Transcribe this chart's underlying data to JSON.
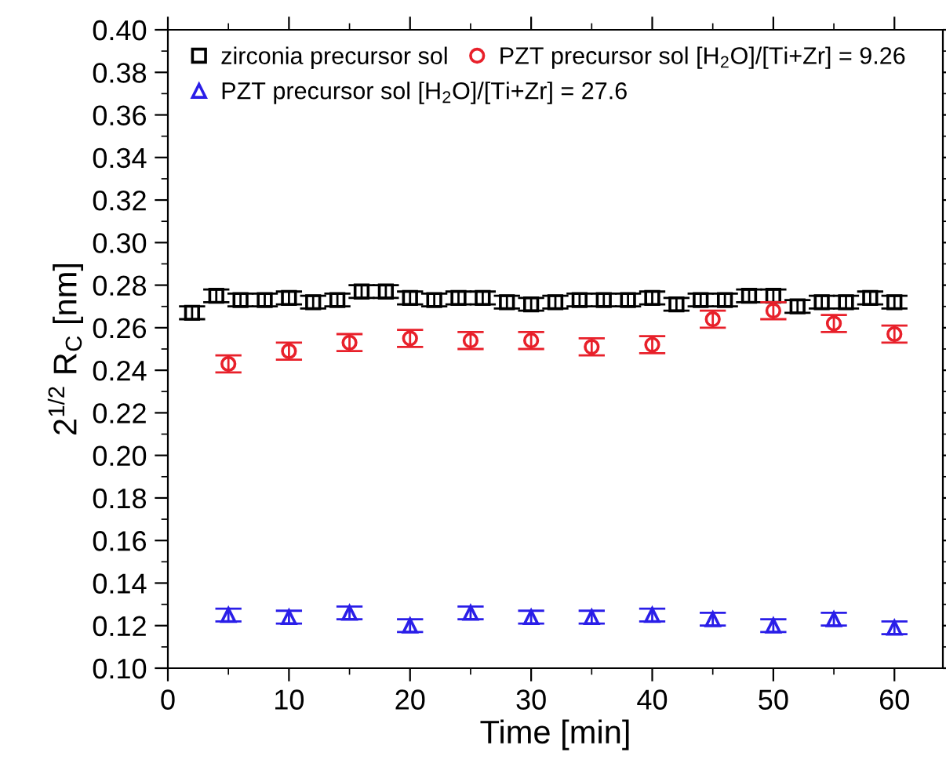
{
  "chart_data": {
    "type": "scatter",
    "xlabel": "Time [min]",
    "ylabel": "2$^{1/2}$ R$_{C}$ [nm]",
    "xlim": [
      0,
      64
    ],
    "xticks": [
      0,
      10,
      20,
      30,
      40,
      50,
      60
    ],
    "ylim": [
      0.1,
      0.4
    ],
    "yticks": [
      {
        "value": 0.1,
        "label": "0.10"
      },
      {
        "value": 0.12,
        "label": "0.12"
      },
      {
        "value": 0.14,
        "label": "0.14"
      },
      {
        "value": 0.16,
        "label": "0.16"
      },
      {
        "value": 0.18,
        "label": "0.18"
      },
      {
        "value": 0.2,
        "label": "0.20"
      },
      {
        "value": 0.22,
        "label": "0.22"
      },
      {
        "value": 0.24,
        "label": "0.24"
      },
      {
        "value": 0.26,
        "label": "0.26"
      },
      {
        "value": 0.28,
        "label": "0.28"
      },
      {
        "value": 0.3,
        "label": "0.30"
      },
      {
        "value": 0.32,
        "label": "0.32"
      },
      {
        "value": 0.34,
        "label": "0.34"
      },
      {
        "value": 0.36,
        "label": "0.36"
      },
      {
        "value": 0.38,
        "label": "0.38"
      },
      {
        "value": 0.4,
        "label": "0.40"
      }
    ],
    "grid": false,
    "legend": "top left",
    "series": [
      {
        "name": "zirconia precursor sol",
        "color": "#000000",
        "marker": "square",
        "x": [
          2,
          4,
          6,
          8,
          10,
          12,
          14,
          16,
          18,
          20,
          22,
          24,
          26,
          28,
          30,
          32,
          34,
          36,
          38,
          40,
          42,
          44,
          46,
          48,
          50,
          52,
          54,
          56,
          58,
          60
        ],
        "values": [
          0.267,
          0.275,
          0.273,
          0.273,
          0.274,
          0.272,
          0.273,
          0.277,
          0.277,
          0.274,
          0.273,
          0.274,
          0.274,
          0.272,
          0.271,
          0.272,
          0.273,
          0.273,
          0.273,
          0.274,
          0.271,
          0.273,
          0.273,
          0.275,
          0.275,
          0.27,
          0.272,
          0.272,
          0.274,
          0.272
        ],
        "errors": [
          0.003,
          0.003,
          0.003,
          0.003,
          0.003,
          0.003,
          0.003,
          0.003,
          0.003,
          0.003,
          0.003,
          0.003,
          0.003,
          0.003,
          0.003,
          0.003,
          0.003,
          0.003,
          0.003,
          0.003,
          0.003,
          0.003,
          0.003,
          0.003,
          0.003,
          0.003,
          0.003,
          0.003,
          0.003,
          0.003
        ]
      },
      {
        "name": "PZT precursor sol [H$_{2}$O]/[Ti+Zr] = 9.26",
        "color": "#e8202a",
        "marker": "circle",
        "x": [
          5,
          10,
          15,
          20,
          25,
          30,
          35,
          40,
          45,
          50,
          55,
          60
        ],
        "values": [
          0.243,
          0.249,
          0.253,
          0.255,
          0.254,
          0.254,
          0.251,
          0.252,
          0.264,
          0.268,
          0.262,
          0.257
        ],
        "errors": [
          0.004,
          0.004,
          0.004,
          0.004,
          0.004,
          0.004,
          0.004,
          0.004,
          0.004,
          0.004,
          0.004,
          0.004
        ]
      },
      {
        "name": "PZT precursor sol [H$_{2}$O]/[Ti+Zr] = 27.6",
        "color": "#2a1ee8",
        "marker": "triangle",
        "x": [
          5,
          10,
          15,
          20,
          25,
          30,
          35,
          40,
          45,
          50,
          55,
          60
        ],
        "values": [
          0.125,
          0.124,
          0.126,
          0.12,
          0.126,
          0.124,
          0.124,
          0.125,
          0.123,
          0.12,
          0.123,
          0.119
        ],
        "errors": [
          0.003,
          0.003,
          0.003,
          0.003,
          0.003,
          0.003,
          0.003,
          0.003,
          0.003,
          0.003,
          0.003,
          0.003
        ]
      }
    ]
  }
}
